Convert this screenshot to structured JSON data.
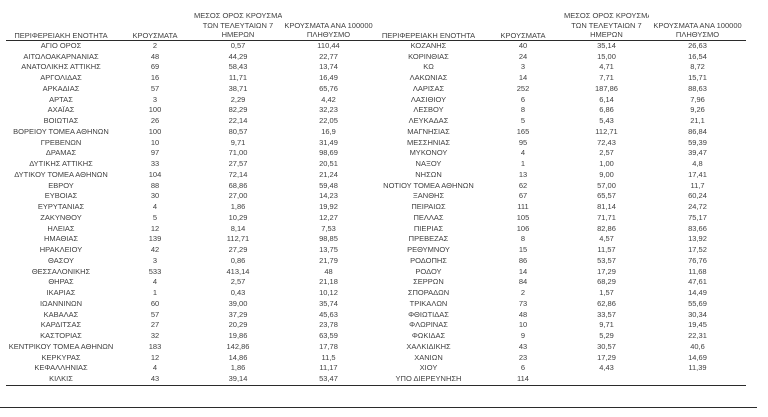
{
  "colors": {
    "text": "#404040",
    "rule": "#2b2b2b",
    "background": "#ffffff"
  },
  "headers": {
    "region": "ΠΕΡΙΦΕΡΕΙΑΚΗ ΕΝΟΤΗΤΑ",
    "cases": "ΚΡΟΥΣΜΑΤΑ",
    "avg7_lines": [
      "ΜΕΣΟΣ ΟΡΟΣ ΚΡΟΥΣΜΑΤΩΝ",
      "ΤΩΝ ΤΕΛΕΥΤΑΙΩΝ 7",
      "ΗΜΕΡΩΝ"
    ],
    "per100k_lines": [
      "ΚΡΟΥΣΜΑΤΑ ΑΝΑ 100000",
      "ΠΛΗΘΥΣΜΟ"
    ]
  },
  "rows_left": [
    [
      "ΑΓΙΟ ΟΡΟΣ",
      "2",
      "0,57",
      "110,44"
    ],
    [
      "ΑΙΤΩΛΟΑΚΑΡΝΑΝΙΑΣ",
      "48",
      "44,29",
      "22,77"
    ],
    [
      "ΑΝΑΤΟΛΙΚΗΣ ΑΤΤΙΚΗΣ",
      "69",
      "58,43",
      "13,74"
    ],
    [
      "ΑΡΓΟΛΙΔΑΣ",
      "16",
      "11,71",
      "16,49"
    ],
    [
      "ΑΡΚΑΔΙΑΣ",
      "57",
      "38,71",
      "65,76"
    ],
    [
      "ΑΡΤΑΣ",
      "3",
      "2,29",
      "4,42"
    ],
    [
      "ΑΧΑΪΑΣ",
      "100",
      "82,29",
      "32,23"
    ],
    [
      "ΒΟΙΩΤΙΑΣ",
      "26",
      "22,14",
      "22,05"
    ],
    [
      "ΒΟΡΕΙΟΥ ΤΟΜΕΑ ΑΘΗΝΩΝ",
      "100",
      "80,57",
      "16,9"
    ],
    [
      "ΓΡΕΒΕΝΩΝ",
      "10",
      "9,71",
      "31,49"
    ],
    [
      "ΔΡΑΜΑΣ",
      "97",
      "71,00",
      "98,69"
    ],
    [
      "ΔΥΤΙΚΗΣ ΑΤΤΙΚΗΣ",
      "33",
      "27,57",
      "20,51"
    ],
    [
      "ΔΥΤΙΚΟΥ ΤΟΜΕΑ ΑΘΗΝΩΝ",
      "104",
      "72,14",
      "21,24"
    ],
    [
      "ΕΒΡΟΥ",
      "88",
      "68,86",
      "59,48"
    ],
    [
      "ΕΥΒΟΙΑΣ",
      "30",
      "27,00",
      "14,23"
    ],
    [
      "ΕΥΡΥΤΑΝΙΑΣ",
      "4",
      "1,86",
      "19,92"
    ],
    [
      "ΖΑΚΥΝΘΟΥ",
      "5",
      "10,29",
      "12,27"
    ],
    [
      "ΗΛΕΙΑΣ",
      "12",
      "8,14",
      "7,53"
    ],
    [
      "ΗΜΑΘΙΑΣ",
      "139",
      "112,71",
      "98,85"
    ],
    [
      "ΗΡΑΚΛΕΙΟΥ",
      "42",
      "27,29",
      "13,75"
    ],
    [
      "ΘΑΣΟΥ",
      "3",
      "0,86",
      "21,79"
    ],
    [
      "ΘΕΣΣΑΛΟΝΙΚΗΣ",
      "533",
      "413,14",
      "48"
    ],
    [
      "ΘΗΡΑΣ",
      "4",
      "2,57",
      "21,18"
    ],
    [
      "ΙΚΑΡΙΑΣ",
      "1",
      "0,43",
      "10,12"
    ],
    [
      "ΙΩΑΝΝΙΝΩΝ",
      "60",
      "39,00",
      "35,74"
    ],
    [
      "ΚΑΒΑΛΑΣ",
      "57",
      "37,29",
      "45,63"
    ],
    [
      "ΚΑΡΔΙΤΣΑΣ",
      "27",
      "20,29",
      "23,78"
    ],
    [
      "ΚΑΣΤΟΡΙΑΣ",
      "32",
      "19,86",
      "63,59"
    ],
    [
      "ΚΕΝΤΡΙΚΟΥ ΤΟΜΕΑ ΑΘΗΝΩΝ",
      "183",
      "142,86",
      "17,78"
    ],
    [
      "ΚΕΡΚΥΡΑΣ",
      "12",
      "14,86",
      "11,5"
    ],
    [
      "ΚΕΦΑΛΛΗΝΙΑΣ",
      "4",
      "1,86",
      "11,17"
    ],
    [
      "ΚΙΛΚΙΣ",
      "43",
      "39,14",
      "53,47"
    ]
  ],
  "rows_right": [
    [
      "ΚΟΖΑΝΗΣ",
      "40",
      "35,14",
      "26,63"
    ],
    [
      "ΚΟΡΙΝΘΙΑΣ",
      "24",
      "15,00",
      "16,54"
    ],
    [
      "ΚΩ",
      "3",
      "4,71",
      "8,72"
    ],
    [
      "ΛΑΚΩΝΙΑΣ",
      "14",
      "7,71",
      "15,71"
    ],
    [
      "ΛΑΡΙΣΑΣ",
      "252",
      "187,86",
      "88,63"
    ],
    [
      "ΛΑΣΙΘΙΟΥ",
      "6",
      "6,14",
      "7,96"
    ],
    [
      "ΛΕΣΒΟΥ",
      "8",
      "6,86",
      "9,26"
    ],
    [
      "ΛΕΥΚΑΔΑΣ",
      "5",
      "5,43",
      "21,1"
    ],
    [
      "ΜΑΓΝΗΣΙΑΣ",
      "165",
      "112,71",
      "86,84"
    ],
    [
      "ΜΕΣΣΗΝΙΑΣ",
      "95",
      "72,43",
      "59,39"
    ],
    [
      "ΜΥΚΟΝΟΥ",
      "4",
      "2,57",
      "39,47"
    ],
    [
      "ΝΑΞΟΥ",
      "1",
      "1,00",
      "4,8"
    ],
    [
      "ΝΗΣΩΝ",
      "13",
      "9,00",
      "17,41"
    ],
    [
      "ΝΟΤΙΟΥ ΤΟΜΕΑ ΑΘΗΝΩΝ",
      "62",
      "57,00",
      "11,7"
    ],
    [
      "ΞΑΝΘΗΣ",
      "67",
      "65,57",
      "60,24"
    ],
    [
      "ΠΕΙΡΑΙΩΣ",
      "111",
      "81,14",
      "24,72"
    ],
    [
      "ΠΕΛΛΑΣ",
      "105",
      "71,71",
      "75,17"
    ],
    [
      "ΠΙΕΡΙΑΣ",
      "106",
      "82,86",
      "83,66"
    ],
    [
      "ΠΡΕΒΕΖΑΣ",
      "8",
      "4,57",
      "13,92"
    ],
    [
      "ΡΕΘΥΜΝΟΥ",
      "15",
      "11,57",
      "17,52"
    ],
    [
      "ΡΟΔΟΠΗΣ",
      "86",
      "53,57",
      "76,76"
    ],
    [
      "ΡΟΔΟΥ",
      "14",
      "17,29",
      "11,68"
    ],
    [
      "ΣΕΡΡΩΝ",
      "84",
      "68,29",
      "47,61"
    ],
    [
      "ΣΠΟΡΑΔΩΝ",
      "2",
      "1,57",
      "14,49"
    ],
    [
      "ΤΡΙΚΑΛΩΝ",
      "73",
      "62,86",
      "55,69"
    ],
    [
      "ΦΘΙΩΤΙΔΑΣ",
      "48",
      "33,57",
      "30,34"
    ],
    [
      "ΦΛΩΡΙΝΑΣ",
      "10",
      "9,71",
      "19,45"
    ],
    [
      "ΦΩΚΙΔΑΣ",
      "9",
      "5,29",
      "22,31"
    ],
    [
      "ΧΑΛΚΙΔΙΚΗΣ",
      "43",
      "30,57",
      "40,6"
    ],
    [
      "ΧΑΝΙΩΝ",
      "23",
      "17,29",
      "14,69"
    ],
    [
      "ΧΙΟΥ",
      "6",
      "4,43",
      "11,39"
    ],
    [
      "ΥΠΟ ΔΙΕΡΕΥΝΗΣΗ",
      "114",
      "",
      ""
    ]
  ]
}
